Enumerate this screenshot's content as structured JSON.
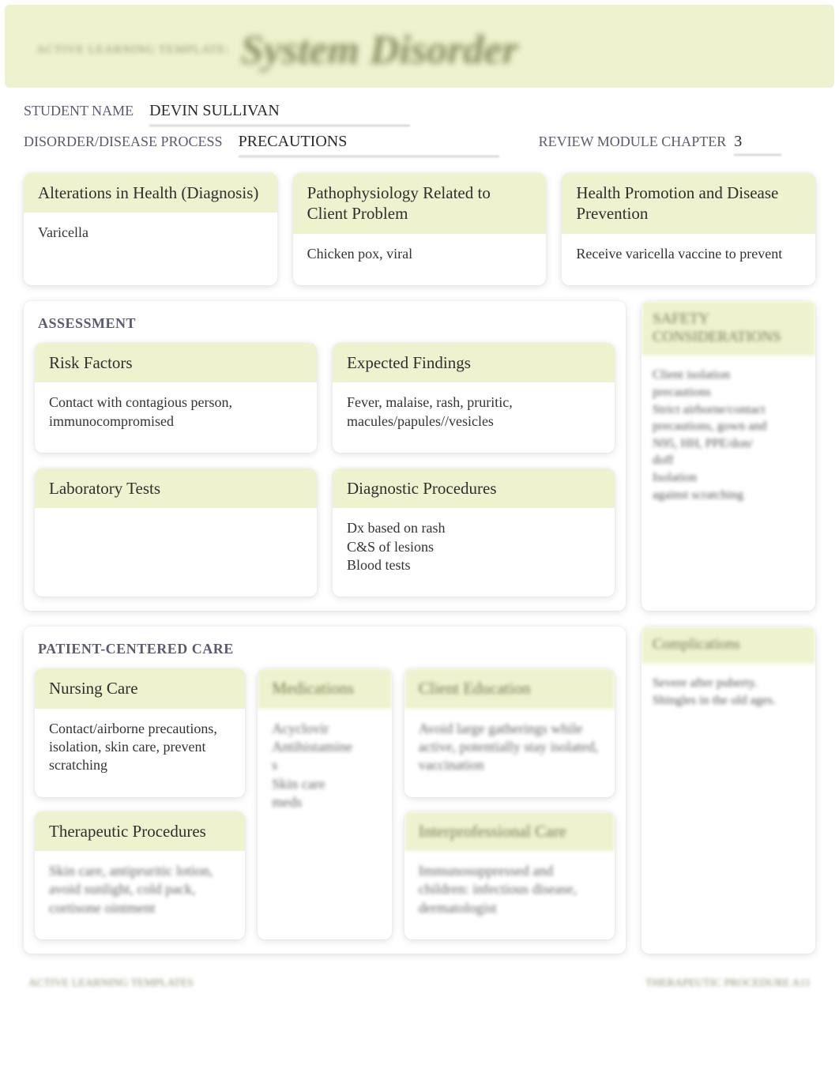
{
  "colors": {
    "header_bg": "#eef2ce",
    "card_head_bg": "#eef2ce",
    "page_bg": "#ffffff",
    "label_color": "#5a5a70",
    "text_color": "#333333",
    "blur_accent": "#868c60"
  },
  "banner": {
    "small": "ACTIVE LEARNING TEMPLATE:",
    "large": "System Disorder"
  },
  "fields": {
    "student_label": "STUDENT NAME",
    "student_value": "DEVIN SULLIVAN",
    "disorder_label": "DISORDER/DISEASE PROCESS",
    "disorder_value": "PRECAUTIONS",
    "chapter_label": "REVIEW MODULE CHAPTER",
    "chapter_value": "3"
  },
  "top_cards": {
    "alterations": {
      "title": "Alterations in Health (Diagnosis)",
      "body": "Varicella"
    },
    "patho": {
      "title": "Pathophysiology Related to Client Problem",
      "body": "Chicken pox, viral"
    },
    "health_promo": {
      "title": "Health Promotion and Disease Prevention",
      "body": "Receive varicella vaccine to prevent"
    }
  },
  "assessment": {
    "title": "ASSESSMENT",
    "risk": {
      "title": "Risk Factors",
      "body": "Contact with contagious person, immunocompromised"
    },
    "expected": {
      "title": "Expected Findings",
      "body": "Fever, malaise, rash, pruritic, macules/papules//vesicles"
    },
    "labs": {
      "title": "Laboratory Tests",
      "body": ""
    },
    "diag": {
      "title": "Diagnostic Procedures",
      "body": "Dx based on rash\nC&S of lesions\nBlood tests"
    }
  },
  "safety": {
    "title": "SAFETY\nCONSIDERATIONS",
    "body": "Client isolation\nprecautions\nStrict airborne/contact\nprecautions, gown and\nN95, HH, PPE/don/\ndoff\nIsolation\nagainst scratching"
  },
  "pcc": {
    "title": "PATIENT-CENTERED CARE",
    "nursing": {
      "title": "Nursing Care",
      "body": "Contact/airborne precautions, isolation, skin care, prevent scratching"
    },
    "meds": {
      "title": "Medications",
      "body": "Acyclovir\nAntihistamine\ns\nSkin care\nmeds"
    },
    "edu": {
      "title": "Client Education",
      "body": "Avoid large gatherings while active, potentially stay isolated, vaccination"
    },
    "therapeutic": {
      "title": "Therapeutic Procedures",
      "body": "Skin care, antipruritic lotion, avoid sunlight, cold pack, cortisone ointment"
    },
    "interprof": {
      "title": "Interprofessional Care",
      "body": "Immunosuppressed and children: infectious disease, dermatologist"
    }
  },
  "complications": {
    "title": "Complications",
    "body": "Severe after puberty.\nShingles in the old ages."
  },
  "footer": {
    "left": "ACTIVE LEARNING TEMPLATES",
    "right": "THERAPEUTIC PROCEDURE    A11"
  }
}
